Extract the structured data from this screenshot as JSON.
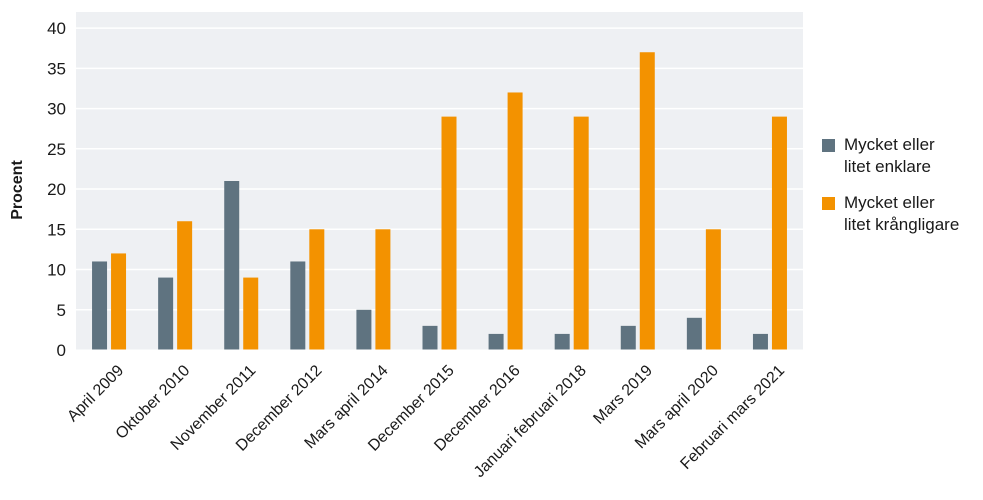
{
  "chart_data": {
    "type": "bar",
    "title": "",
    "xlabel": "",
    "ylabel": "Procent",
    "ylim": [
      0,
      42
    ],
    "yticks": [
      0,
      5,
      10,
      15,
      20,
      25,
      30,
      35,
      40
    ],
    "grid": true,
    "legend_position": "right",
    "categories": [
      "April 2009",
      "Oktober 2010",
      "November 2011",
      "December 2012",
      "Mars april 2014",
      "December 2015",
      "December 2016",
      "Januari februari 2018",
      "Mars 2019",
      "Mars april 2020",
      "Februari mars 2021"
    ],
    "series": [
      {
        "name": "Mycket eller litet enklare",
        "color": "#5f7380",
        "values": [
          11,
          9,
          21,
          11,
          5,
          3,
          2,
          2,
          3,
          4,
          2
        ]
      },
      {
        "name": "Mycket eller litet krångligare",
        "color": "#f39200",
        "values": [
          12,
          16,
          9,
          15,
          15,
          29,
          32,
          29,
          37,
          15,
          29
        ]
      }
    ],
    "plot_background": "#eef0f3",
    "grid_color": "#ffffff"
  },
  "legend": {
    "items": [
      {
        "line1": "Mycket eller",
        "line2": "litet enklare"
      },
      {
        "line1": "Mycket eller",
        "line2": "litet krångligare"
      }
    ]
  }
}
